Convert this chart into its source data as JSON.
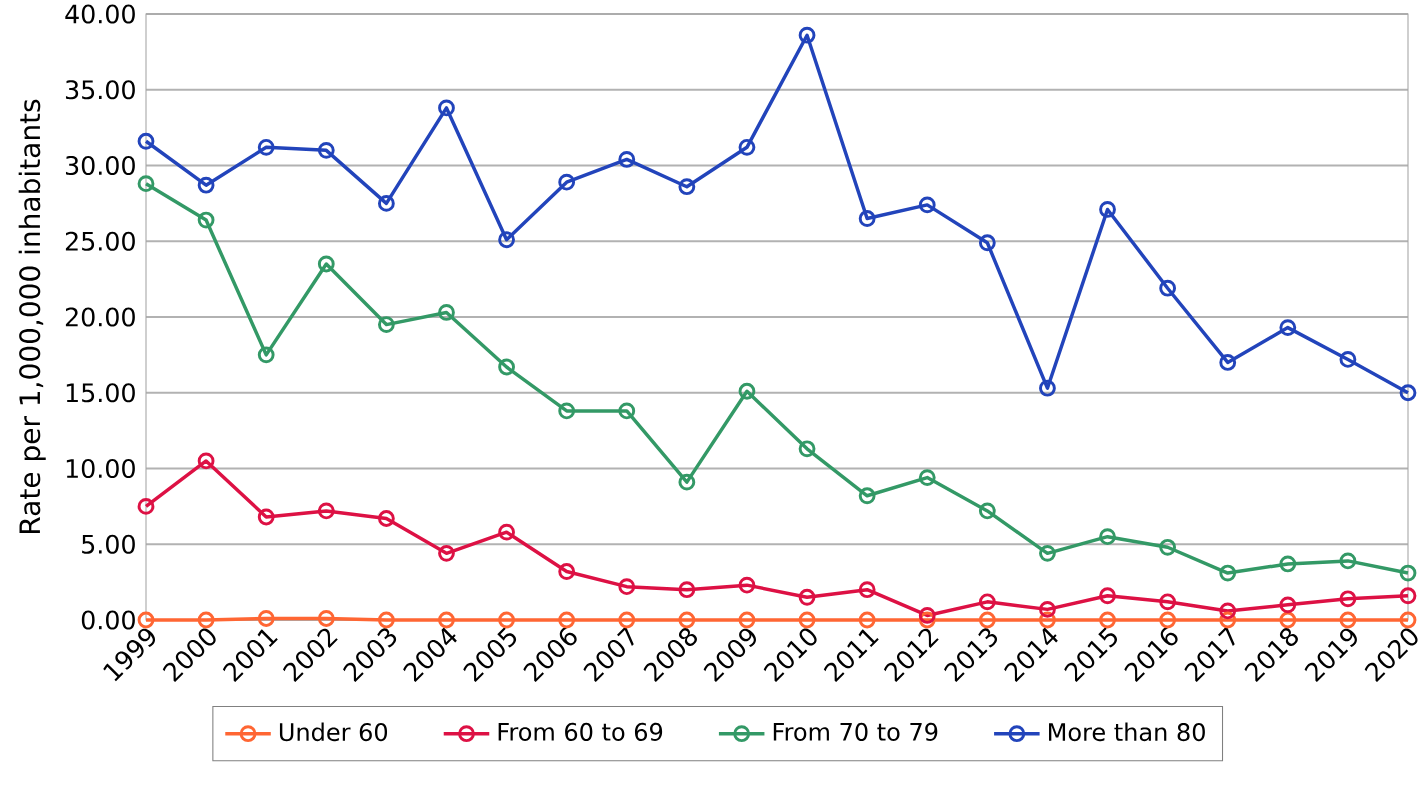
{
  "chart_data": {
    "type": "line",
    "ylabel": "Rate per 1,000,000 inhabitants",
    "categories": [
      "1999",
      "2000",
      "2001",
      "2002",
      "2003",
      "2004",
      "2005",
      "2006",
      "2007",
      "2008",
      "2009",
      "2010",
      "2011",
      "2012",
      "2013",
      "2014",
      "2015",
      "2016",
      "2017",
      "2018",
      "2019",
      "2020"
    ],
    "series": [
      {
        "name": "Under 60",
        "color": "#ff6633",
        "values": [
          0.0,
          0.0,
          0.1,
          0.1,
          0.0,
          0.0,
          0.0,
          0.0,
          0.0,
          0.0,
          0.0,
          0.0,
          0.0,
          0.0,
          0.0,
          0.0,
          0.0,
          0.0,
          0.0,
          0.0,
          0.0,
          0.0
        ]
      },
      {
        "name": "From 60 to 69",
        "color": "#dd1144",
        "values": [
          7.5,
          10.5,
          6.8,
          7.2,
          6.7,
          4.4,
          5.8,
          3.2,
          2.2,
          2.0,
          2.3,
          1.5,
          2.0,
          0.3,
          1.2,
          0.7,
          1.6,
          1.2,
          0.6,
          1.0,
          1.4,
          1.6
        ]
      },
      {
        "name": "From 70 to 79",
        "color": "#339966",
        "values": [
          28.8,
          26.4,
          17.5,
          23.5,
          19.5,
          20.3,
          16.7,
          13.8,
          13.8,
          9.1,
          15.1,
          11.3,
          8.2,
          9.4,
          7.2,
          4.4,
          5.5,
          4.8,
          3.1,
          3.7,
          3.9,
          3.1
        ]
      },
      {
        "name": "More than 80",
        "color": "#2244bb",
        "values": [
          31.6,
          28.7,
          31.2,
          31.0,
          27.5,
          33.8,
          25.1,
          28.9,
          30.4,
          28.6,
          31.2,
          38.6,
          26.5,
          27.4,
          24.9,
          15.3,
          27.1,
          21.9,
          17.0,
          19.3,
          17.2,
          15.0
        ]
      }
    ],
    "ylim": [
      0,
      40
    ],
    "yticks": [
      {
        "value": 0,
        "label": "0.00"
      },
      {
        "value": 5,
        "label": "5.00"
      },
      {
        "value": 10,
        "label": "10.00"
      },
      {
        "value": 15,
        "label": "15.00"
      },
      {
        "value": 20,
        "label": "20.00"
      },
      {
        "value": 25,
        "label": "25.00"
      },
      {
        "value": 30,
        "label": "30.00"
      },
      {
        "value": 35,
        "label": "35.00"
      },
      {
        "value": 40,
        "label": "40.00"
      }
    ],
    "grid": "y",
    "legend": "bottom",
    "marker": "circle",
    "line_style": "solid"
  }
}
